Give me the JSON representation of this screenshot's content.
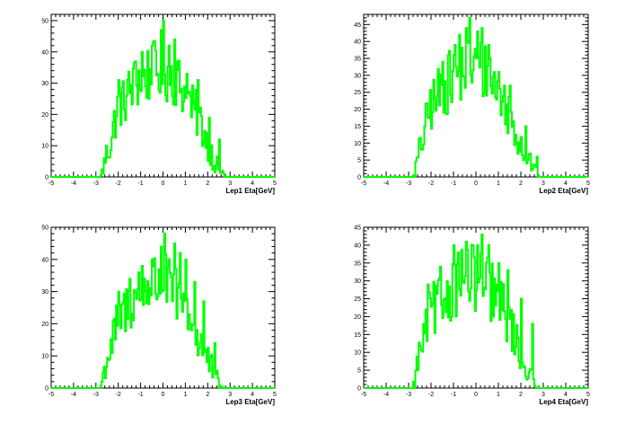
{
  "style": {
    "line_color": "#00ff00",
    "frame_color": "#000000"
  },
  "chart_data": [
    {
      "type": "line",
      "xlabel": "Lep1 Eta[GeV]",
      "ylabel": "",
      "xlim": [
        -5,
        5
      ],
      "ylim": [
        0,
        52
      ],
      "xticks": [
        "-5",
        "-4",
        "-3",
        "-2",
        "-1",
        "0",
        "1",
        "2",
        "3",
        "4",
        "5"
      ],
      "yticks": [
        0,
        10,
        20,
        30,
        40,
        50
      ],
      "bin_width": 0.05,
      "grid": false,
      "series": [
        {
          "x_points": [
            -5,
            -2.8,
            -2.7,
            -2.6,
            -2.5,
            -2.4,
            -2.3,
            -2.2,
            -2.1,
            -2.0,
            -1.9,
            -1.8,
            -1.7,
            -1.6,
            -1.5,
            -1.4,
            -1.3,
            -1.2,
            -1.1,
            -1.0,
            -0.9,
            -0.8,
            -0.7,
            -0.6,
            -0.5,
            -0.4,
            -0.3,
            -0.2,
            -0.1,
            0.0,
            0.1,
            0.2,
            0.3,
            0.4,
            0.5,
            0.6,
            0.7,
            0.8,
            0.9,
            1.0,
            1.1,
            1.2,
            1.3,
            1.4,
            1.5,
            1.6,
            1.7,
            1.8,
            1.9,
            2.0,
            2.1,
            2.2,
            2.3,
            2.4,
            2.5,
            2.6,
            2.7,
            2.8,
            5
          ],
          "y_points": [
            0,
            0,
            2,
            5,
            8,
            9,
            12,
            16,
            20,
            22,
            24,
            23,
            25,
            27,
            27,
            29,
            29,
            30,
            31,
            31,
            32,
            31,
            33,
            32,
            33,
            34,
            33,
            34,
            34,
            34,
            34,
            33,
            34,
            33,
            32,
            32,
            30,
            29,
            28,
            26,
            25,
            24,
            22,
            21,
            20,
            19,
            17,
            15,
            13,
            11,
            9,
            7,
            5,
            4,
            3,
            2,
            1,
            0,
            0
          ],
          "peaks": [
            [
              0.0,
              50
            ],
            [
              -0.1,
              47
            ],
            [
              0.5,
              44
            ],
            [
              -0.5,
              42
            ],
            [
              0.3,
              42
            ],
            [
              -0.9,
              40
            ],
            [
              -1.2,
              37
            ],
            [
              1.1,
              33
            ],
            [
              1.6,
              31
            ],
            [
              -2.0,
              31
            ],
            [
              2.1,
              19
            ],
            [
              2.5,
              12
            ]
          ]
        }
      ]
    },
    {
      "type": "line",
      "xlabel": "Lep2 Eta[GeV]",
      "ylabel": "",
      "xlim": [
        -5,
        5
      ],
      "ylim": [
        0,
        48
      ],
      "xticks": [
        "-5",
        "-4",
        "-3",
        "-2",
        "-1",
        "0",
        "1",
        "2",
        "3",
        "4",
        "5"
      ],
      "yticks": [
        0,
        5,
        10,
        15,
        20,
        25,
        30,
        35,
        40,
        45
      ],
      "bin_width": 0.05,
      "grid": false,
      "series": [
        {
          "x_points": [
            -5,
            -2.8,
            -2.7,
            -2.6,
            -2.5,
            -2.4,
            -2.3,
            -2.2,
            -2.1,
            -2.0,
            -1.9,
            -1.8,
            -1.7,
            -1.6,
            -1.5,
            -1.4,
            -1.3,
            -1.2,
            -1.1,
            -1.0,
            -0.9,
            -0.8,
            -0.7,
            -0.6,
            -0.5,
            -0.4,
            -0.3,
            -0.2,
            -0.1,
            0.0,
            0.1,
            0.2,
            0.3,
            0.4,
            0.5,
            0.6,
            0.7,
            0.8,
            0.9,
            1.0,
            1.1,
            1.2,
            1.3,
            1.4,
            1.5,
            1.6,
            1.7,
            1.8,
            1.9,
            2.0,
            2.1,
            2.2,
            2.3,
            2.4,
            2.5,
            2.6,
            2.7,
            2.8,
            5
          ],
          "y_points": [
            0,
            0,
            2,
            5,
            8,
            10,
            13,
            16,
            19,
            21,
            22,
            22,
            24,
            25,
            26,
            26,
            27,
            28,
            29,
            30,
            30,
            31,
            31,
            32,
            32,
            33,
            32,
            33,
            33,
            32,
            32,
            32,
            31,
            31,
            30,
            29,
            29,
            28,
            26,
            25,
            24,
            23,
            21,
            20,
            19,
            17,
            15,
            13,
            12,
            10,
            9,
            7,
            6,
            5,
            4,
            2,
            1,
            0,
            0
          ],
          "peaks": [
            [
              -0.3,
              47
            ],
            [
              -0.4,
              44
            ],
            [
              0.3,
              44
            ],
            [
              -0.7,
              42
            ],
            [
              0.1,
              43
            ],
            [
              -0.9,
              39
            ],
            [
              0.6,
              39
            ],
            [
              -1.2,
              36
            ],
            [
              -1.5,
              34
            ],
            [
              1.0,
              31
            ],
            [
              1.5,
              27
            ],
            [
              2.2,
              15
            ],
            [
              2.7,
              6
            ]
          ]
        }
      ]
    },
    {
      "type": "line",
      "xlabel": "Lep3 Eta[GeV]",
      "ylabel": "",
      "xlim": [
        -5,
        5
      ],
      "ylim": [
        0,
        50
      ],
      "xticks": [
        "-5",
        "-4",
        "-3",
        "-2",
        "-1",
        "0",
        "1",
        "2",
        "3",
        "4",
        "5"
      ],
      "yticks": [
        0,
        10,
        20,
        30,
        40,
        50
      ],
      "bin_width": 0.05,
      "grid": false,
      "series": [
        {
          "x_points": [
            -5,
            -2.8,
            -2.7,
            -2.6,
            -2.5,
            -2.4,
            -2.3,
            -2.2,
            -2.1,
            -2.0,
            -1.9,
            -1.8,
            -1.7,
            -1.6,
            -1.5,
            -1.4,
            -1.3,
            -1.2,
            -1.1,
            -1.0,
            -0.9,
            -0.8,
            -0.7,
            -0.6,
            -0.5,
            -0.4,
            -0.3,
            -0.2,
            -0.1,
            0.0,
            0.1,
            0.2,
            0.3,
            0.4,
            0.5,
            0.6,
            0.7,
            0.8,
            0.9,
            1.0,
            1.1,
            1.2,
            1.3,
            1.4,
            1.5,
            1.6,
            1.7,
            1.8,
            1.9,
            2.0,
            2.1,
            2.2,
            2.3,
            2.4,
            2.5,
            2.6,
            2.7,
            2.8,
            5
          ],
          "y_points": [
            0,
            0,
            3,
            6,
            9,
            11,
            13,
            16,
            19,
            21,
            22,
            23,
            24,
            25,
            26,
            27,
            28,
            29,
            30,
            30,
            31,
            31,
            32,
            33,
            32,
            33,
            32,
            33,
            33,
            33,
            32,
            32,
            31,
            31,
            30,
            30,
            28,
            27,
            26,
            25,
            24,
            22,
            20,
            19,
            17,
            15,
            14,
            12,
            10,
            9,
            7,
            6,
            4,
            3,
            2,
            1,
            0,
            0,
            0
          ],
          "peaks": [
            [
              0.1,
              48
            ],
            [
              -0.1,
              44
            ],
            [
              0.5,
              45
            ],
            [
              -0.5,
              40
            ],
            [
              0.8,
              42
            ],
            [
              -0.9,
              38
            ],
            [
              1.0,
              40
            ],
            [
              -1.5,
              34
            ],
            [
              1.4,
              33
            ],
            [
              -2.0,
              30
            ],
            [
              1.8,
              27
            ],
            [
              2.3,
              14
            ]
          ]
        }
      ]
    },
    {
      "type": "line",
      "xlabel": "Lep4 Eta[GeV]",
      "ylabel": "",
      "xlim": [
        -5,
        5
      ],
      "ylim": [
        0,
        45
      ],
      "xticks": [
        "-5",
        "-4",
        "-3",
        "-2",
        "-1",
        "0",
        "1",
        "2",
        "3",
        "4",
        "5"
      ],
      "yticks": [
        0,
        5,
        10,
        15,
        20,
        25,
        30,
        35,
        40,
        45
      ],
      "bin_width": 0.05,
      "grid": false,
      "series": [
        {
          "x_points": [
            -5,
            -2.8,
            -2.7,
            -2.6,
            -2.5,
            -2.4,
            -2.3,
            -2.2,
            -2.1,
            -2.0,
            -1.9,
            -1.8,
            -1.7,
            -1.6,
            -1.5,
            -1.4,
            -1.3,
            -1.2,
            -1.1,
            -1.0,
            -0.9,
            -0.8,
            -0.7,
            -0.6,
            -0.5,
            -0.4,
            -0.3,
            -0.2,
            -0.1,
            0.0,
            0.1,
            0.2,
            0.3,
            0.4,
            0.5,
            0.6,
            0.7,
            0.8,
            0.9,
            1.0,
            1.1,
            1.2,
            1.3,
            1.4,
            1.5,
            1.6,
            1.7,
            1.8,
            1.9,
            2.0,
            2.1,
            2.2,
            2.3,
            2.4,
            2.5,
            2.6,
            2.7,
            2.8,
            5
          ],
          "y_points": [
            0,
            0,
            3,
            7,
            10,
            12,
            14,
            16,
            19,
            21,
            22,
            22,
            23,
            24,
            25,
            25,
            26,
            27,
            28,
            28,
            29,
            29,
            30,
            31,
            30,
            31,
            31,
            31,
            31,
            30,
            30,
            30,
            29,
            29,
            28,
            28,
            27,
            26,
            25,
            24,
            23,
            22,
            21,
            20,
            18,
            17,
            15,
            13,
            11,
            10,
            8,
            6,
            5,
            4,
            2,
            1,
            0,
            0,
            0
          ],
          "peaks": [
            [
              0.3,
              43
            ],
            [
              -0.4,
              41
            ],
            [
              0.1,
              40
            ],
            [
              -1.0,
              40
            ],
            [
              0.6,
              40
            ],
            [
              -0.8,
              38
            ],
            [
              1.0,
              35
            ],
            [
              -1.6,
              34
            ],
            [
              1.4,
              33
            ],
            [
              -2.1,
              29
            ],
            [
              2.0,
              25
            ],
            [
              2.5,
              18
            ]
          ]
        }
      ]
    }
  ]
}
